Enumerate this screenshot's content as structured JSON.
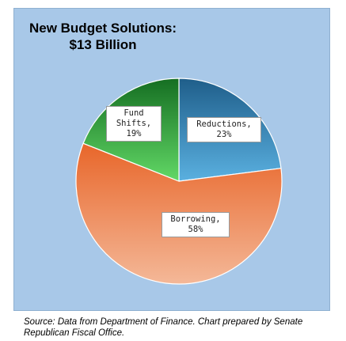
{
  "chart_data": {
    "type": "pie",
    "title": "New Budget Solutions:",
    "subtitle": "$13 Billion",
    "slices": [
      {
        "label": "Reductions,",
        "value_label": "23%",
        "value": 23,
        "color": "#3a8fc4",
        "color_light": "#5ab0e0"
      },
      {
        "label": "Borrowing,",
        "value_label": "58%",
        "value": 58,
        "color": "#e8703a",
        "color_light": "#f0b090"
      },
      {
        "label": "Fund Shifts,",
        "value_label": "19%",
        "value": 19,
        "color": "#1e8a2e",
        "color_light": "#5ed060"
      }
    ]
  },
  "source": "Source: Data from Department of Finance. Chart prepared by Senate Republican Fiscal Office."
}
